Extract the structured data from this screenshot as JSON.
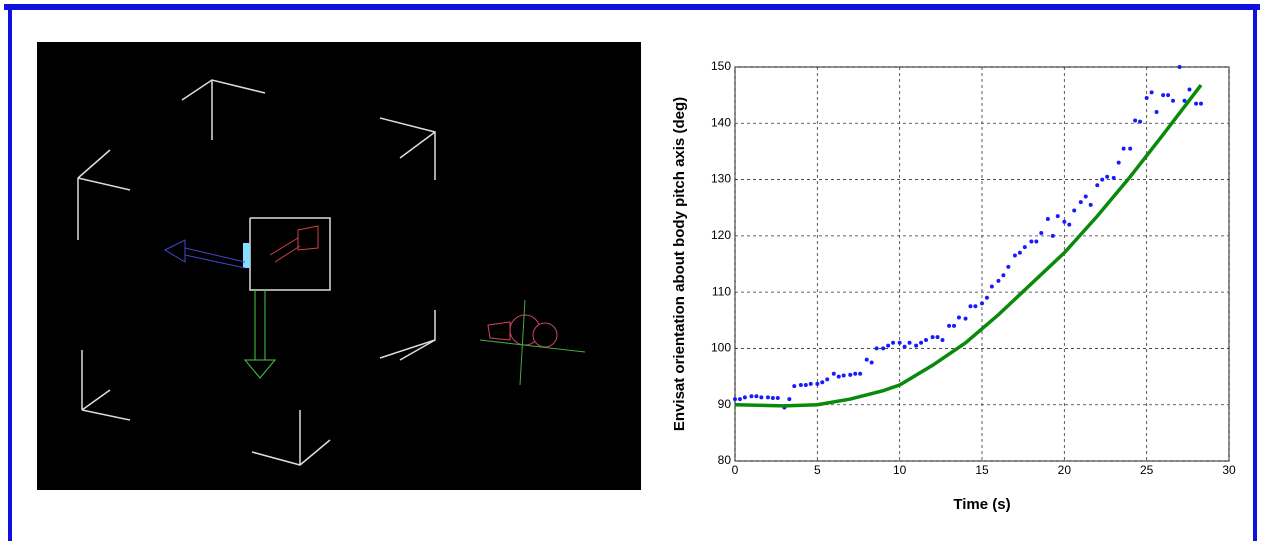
{
  "chart_data": {
    "type": "scatter",
    "xlabel": "Time (s)",
    "ylabel": "Envisat orientation about body pitch axis (deg)",
    "xlim": [
      0,
      30
    ],
    "xticks": [
      0,
      5,
      10,
      15,
      20,
      25,
      30
    ],
    "ylim": [
      80,
      150
    ],
    "yticks": [
      80,
      90,
      100,
      110,
      120,
      130,
      140,
      150
    ],
    "grid": true,
    "series": [
      {
        "color": "#1a1aff",
        "marker": "dot",
        "x": [
          0,
          0.3,
          0.6,
          1,
          1.3,
          1.6,
          2,
          2.3,
          2.6,
          3,
          3.3,
          3.6,
          4,
          4.3,
          4.6,
          5,
          5.3,
          5.6,
          6,
          6.3,
          6.6,
          7,
          7.3,
          7.6,
          8,
          8.3,
          8.6,
          9,
          9.3,
          9.6,
          10,
          10.3,
          10.6,
          11,
          11.3,
          11.6,
          12,
          12.3,
          12.6,
          13,
          13.3,
          13.6,
          14,
          14.3,
          14.6,
          15,
          15.3,
          15.6,
          16,
          16.3,
          16.6,
          17,
          17.3,
          17.6,
          18,
          18.3,
          18.6,
          19,
          19.3,
          19.6,
          20,
          20.3,
          20.6,
          21,
          21.3,
          21.6,
          22,
          22.3,
          22.6,
          23,
          23.3,
          23.6,
          24,
          24.3,
          24.6,
          25,
          25.3,
          25.6,
          26,
          26.3,
          26.6,
          27,
          27.3,
          27.6,
          28,
          28.3
        ],
        "values": [
          91,
          91,
          91.3,
          91.5,
          91.5,
          91.3,
          91.3,
          91.2,
          91.2,
          89.5,
          91,
          93.3,
          93.5,
          93.5,
          93.7,
          93.7,
          94,
          94.5,
          95.5,
          95,
          95.2,
          95.3,
          95.5,
          95.5,
          98,
          97.5,
          100,
          100,
          100.5,
          101,
          101,
          100.3,
          101,
          100.5,
          101,
          101.5,
          102,
          102,
          101.5,
          104,
          104,
          105.5,
          105.3,
          107.5,
          107.5,
          108,
          109,
          111,
          112,
          113,
          114.5,
          116.5,
          117,
          118,
          119,
          119,
          120.5,
          123,
          120,
          123.5,
          122.5,
          122,
          124.5,
          126,
          127,
          125.5,
          129,
          130,
          130.5,
          130.3,
          133,
          135.5,
          135.5,
          140.5,
          140.3,
          144.5,
          145.5,
          142,
          145,
          145,
          144,
          150,
          144,
          146,
          143.5,
          143.5
        ]
      },
      {
        "color": "#0a8a0a",
        "marker": "line",
        "x": [
          0,
          3,
          5,
          7,
          9,
          10,
          12,
          14,
          16,
          18,
          20,
          22,
          24,
          26,
          28.3
        ],
        "values": [
          90,
          89.8,
          90,
          91,
          92.5,
          93.5,
          97,
          101,
          106,
          111.5,
          117,
          123.5,
          130.5,
          138,
          146.8
        ]
      }
    ]
  }
}
